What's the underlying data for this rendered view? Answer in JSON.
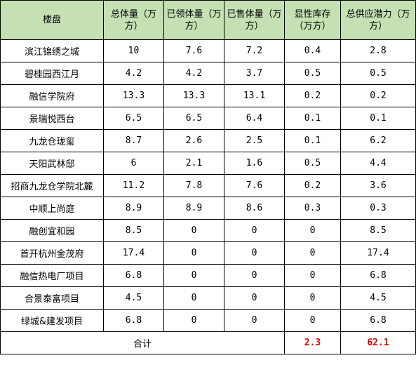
{
  "columns": [
    "楼盘",
    "总体量（万方）",
    "已领体量（万方）",
    "已售体量（万方）",
    "显性库存（万方）",
    "总供应潜力（万方）"
  ],
  "header_bg": "#c5e0b3",
  "total_color": "#e60000",
  "rows": [
    [
      "滨江锦绣之城",
      "10",
      "7.6",
      "7.2",
      "0.4",
      "2.8"
    ],
    [
      "碧桂园西江月",
      "4.2",
      "4.2",
      "3.7",
      "0.5",
      "0.5"
    ],
    [
      "融信学院府",
      "13.3",
      "13.3",
      "13.1",
      "0.2",
      "0.2"
    ],
    [
      "景瑞悦西台",
      "6.5",
      "6.5",
      "6.4",
      "0.1",
      "0.1"
    ],
    [
      "九龙仓珑玺",
      "8.7",
      "2.6",
      "2.5",
      "0.1",
      "6.2"
    ],
    [
      "天阳武林邸",
      "6",
      "2.1",
      "1.6",
      "0.5",
      "4.4"
    ],
    [
      "招商九龙仓学院北麓",
      "11.2",
      "7.8",
      "7.6",
      "0.2",
      "3.6"
    ],
    [
      "中顺上尚庭",
      "8.9",
      "8.9",
      "8.6",
      "0.3",
      "0.3"
    ],
    [
      "融创宜和园",
      "8.5",
      "0",
      "0",
      "0",
      "8.5"
    ],
    [
      "首开杭州金茂府",
      "17.4",
      "0",
      "0",
      "0",
      "17.4"
    ],
    [
      "融信热电厂项目",
      "6.8",
      "0",
      "0",
      "0",
      "6.8"
    ],
    [
      "合景泰富项目",
      "4.5",
      "0",
      "0",
      "0",
      "4.5"
    ],
    [
      "绿城&建发项目",
      "6.8",
      "0",
      "0",
      "0",
      "6.8"
    ]
  ],
  "total": {
    "label": "合计",
    "inventory": "2.3",
    "supply": "62.1"
  }
}
